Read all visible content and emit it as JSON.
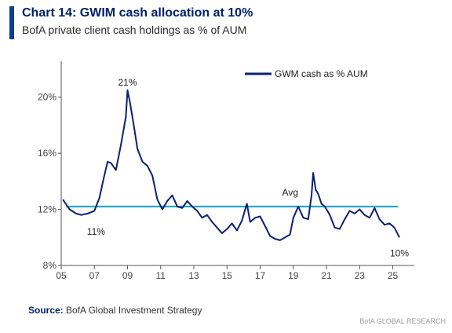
{
  "header": {
    "title": "Chart 14: GWIM cash allocation at 10%",
    "subtitle": "BofA private client cash holdings as % of AUM"
  },
  "footer": {
    "source_label": "Source:",
    "source_text": "BofA Global Investment Strategy",
    "footnote": "BofA GLOBAL RESEARCH"
  },
  "colors": {
    "series": "#0b1f74",
    "avg": "#29a9c7",
    "accent": "#0b3d91"
  },
  "chart_data": {
    "type": "line",
    "legend_position": "top-right",
    "grid": false,
    "xlim": [
      2005,
      2026.3
    ],
    "ylim": [
      8,
      22
    ],
    "x_tick_values": [
      2005,
      2007,
      2009,
      2011,
      2013,
      2015,
      2017,
      2019,
      2021,
      2023,
      2025
    ],
    "x_tick_labels": [
      "05",
      "07",
      "09",
      "11",
      "13",
      "15",
      "17",
      "19",
      "21",
      "23",
      "25"
    ],
    "y_tick_values": [
      8,
      12,
      16,
      20
    ],
    "y_tick_labels": [
      "8%",
      "12%",
      "16%",
      "20%"
    ],
    "average": 12.2,
    "series": [
      {
        "name": "GWM cash as % AUM",
        "x": [
          2005.1,
          2005.5,
          2005.9,
          2006.2,
          2006.6,
          2007.0,
          2007.3,
          2007.6,
          2007.8,
          2008.0,
          2008.3,
          2008.6,
          2008.9,
          2009.0,
          2009.15,
          2009.35,
          2009.6,
          2009.9,
          2010.2,
          2010.5,
          2010.8,
          2011.1,
          2011.4,
          2011.7,
          2012.0,
          2012.3,
          2012.6,
          2012.9,
          2013.2,
          2013.5,
          2013.8,
          2014.1,
          2014.4,
          2014.7,
          2015.0,
          2015.3,
          2015.6,
          2015.9,
          2016.2,
          2016.4,
          2016.7,
          2017.0,
          2017.3,
          2017.6,
          2017.9,
          2018.2,
          2018.5,
          2018.8,
          2019.0,
          2019.3,
          2019.6,
          2019.9,
          2020.1,
          2020.2,
          2020.35,
          2020.5,
          2020.7,
          2020.9,
          2021.2,
          2021.5,
          2021.8,
          2022.1,
          2022.4,
          2022.7,
          2023.0,
          2023.3,
          2023.6,
          2023.9,
          2024.2,
          2024.5,
          2024.8,
          2025.1,
          2025.4
        ],
        "y": [
          12.7,
          12.0,
          11.7,
          11.6,
          11.7,
          11.9,
          12.8,
          14.4,
          15.4,
          15.3,
          14.8,
          16.6,
          18.6,
          20.5,
          19.6,
          18.2,
          16.3,
          15.4,
          15.1,
          14.4,
          12.7,
          12.0,
          12.6,
          13.0,
          12.2,
          12.1,
          12.6,
          12.2,
          11.9,
          11.4,
          11.6,
          11.1,
          10.7,
          10.3,
          10.6,
          11.0,
          10.5,
          11.2,
          12.4,
          11.1,
          11.4,
          11.5,
          10.8,
          10.1,
          9.9,
          9.8,
          10.0,
          10.2,
          11.4,
          12.2,
          11.4,
          11.3,
          13.0,
          14.6,
          13.4,
          13.1,
          12.4,
          12.2,
          11.6,
          10.7,
          10.6,
          11.3,
          11.9,
          11.7,
          12.0,
          11.6,
          11.4,
          12.1,
          11.3,
          10.9,
          11.0,
          10.7,
          10.0
        ]
      }
    ],
    "annotations": [
      {
        "text": "21%",
        "x": 2009.0,
        "y": 20.5
      },
      {
        "text": "11%",
        "x": 2007.1,
        "y": 11.3
      },
      {
        "text": "Avg",
        "x": 2019.0,
        "y": 12.2
      },
      {
        "text": "10%",
        "x": 2025.4,
        "y": 10.0
      }
    ]
  }
}
